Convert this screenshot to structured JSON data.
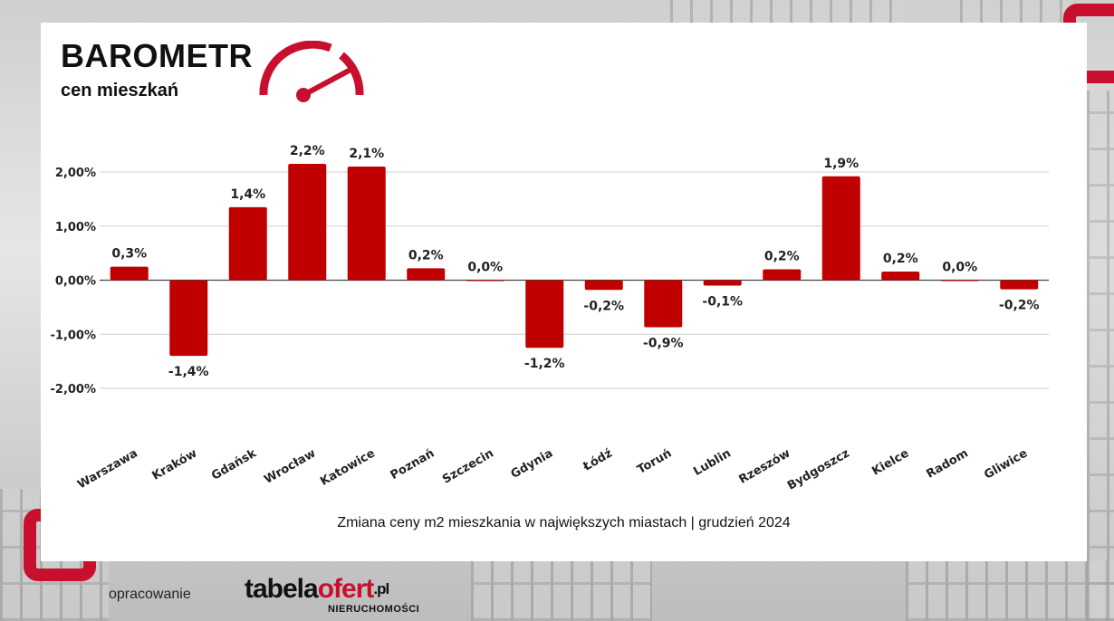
{
  "header": {
    "title": "BAROMETR",
    "subtitle": "cen mieszkań"
  },
  "colors": {
    "bar": "#c00000",
    "accent": "#c8102e",
    "grid": "#d0d0d0",
    "axis": "#444444"
  },
  "chart_data": {
    "type": "bar",
    "categories": [
      "Warszawa",
      "Kraków",
      "Gdańsk",
      "Wrocław",
      "Katowice",
      "Poznań",
      "Szczecin",
      "Gdynia",
      "Łódź",
      "Toruń",
      "Lublin",
      "Rzeszów",
      "Bydgoszcz",
      "Kielce",
      "Radom",
      "Gliwice"
    ],
    "values": [
      0.25,
      -1.4,
      1.35,
      2.15,
      2.1,
      0.22,
      0.0,
      -1.25,
      -0.18,
      -0.87,
      -0.1,
      0.2,
      1.92,
      0.16,
      0.0,
      -0.17
    ],
    "data_labels": [
      "0,3%",
      "-1,4%",
      "1,4%",
      "2,2%",
      "2,1%",
      "0,2%",
      "0,0%",
      "-1,2%",
      "-0,2%",
      "-0,9%",
      "-0,1%",
      "0,2%",
      "1,9%",
      "0,2%",
      "0,0%",
      "-0,2%"
    ],
    "yticks": [
      2,
      1,
      0,
      -1,
      -2
    ],
    "ytick_labels": [
      "2,00%",
      "1,00%",
      "0,00%",
      "-1,00%",
      "-2,00%"
    ],
    "ylim": [
      -2,
      2
    ],
    "grid": true,
    "caption": "Zmiana ceny m2 mieszkania w największych miastach | grudzień 2024"
  },
  "footer": {
    "label": "opracowanie",
    "logo_part1": "tabela",
    "logo_part2": "ofert",
    "logo_tld": ".pl",
    "logo_sub": "NIERUCHOMOŚCI"
  }
}
